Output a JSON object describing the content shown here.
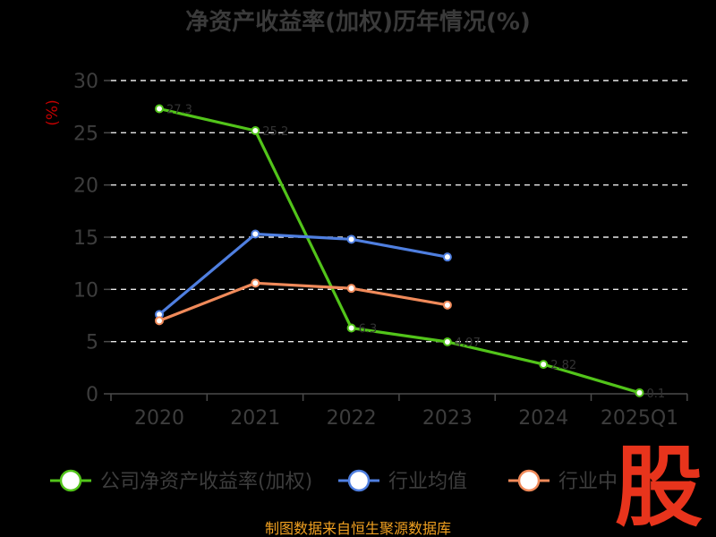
{
  "chart_data": {
    "type": "line",
    "title": "净资产收益率(加权)历年情况(%)",
    "ylabel": "(%)",
    "categories": [
      "2020",
      "2021",
      "2022",
      "2023",
      "2024",
      "2025Q1"
    ],
    "ylim": [
      0,
      30
    ],
    "yticks": [
      0,
      5,
      10,
      15,
      20,
      25,
      30
    ],
    "grid": true,
    "legend_position": "bottom",
    "series": [
      {
        "name": "公司净资产收益率(加权)",
        "color": "#52c41a",
        "values": [
          27.3,
          25.2,
          6.3,
          4.97,
          2.82,
          0.1
        ]
      },
      {
        "name": "行业均值",
        "color": "#4f7fe0",
        "values": [
          7.6,
          15.3,
          14.8,
          13.1,
          null,
          null
        ]
      },
      {
        "name": "行业中位数",
        "color": "#f08a5a",
        "values": [
          7.0,
          10.6,
          10.1,
          8.5,
          null,
          null
        ]
      }
    ]
  },
  "legend_visible": [
    "公司净资产收益率(加权)",
    "行业均值",
    "行业中"
  ],
  "source": "制图数据来自恒生聚源数据库",
  "watermark": "股",
  "colors": {
    "background": "#000000",
    "watermark": "#e8341c",
    "source": "#f0a020"
  }
}
